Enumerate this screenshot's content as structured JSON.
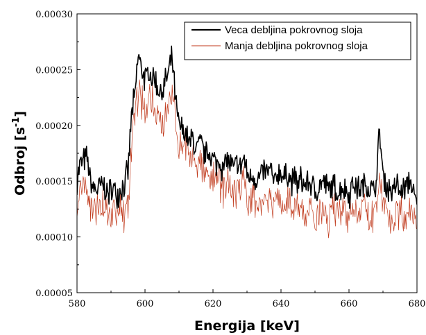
{
  "chart_data": {
    "type": "line",
    "title": "",
    "xlabel": "Energija [keV]",
    "ylabel_main": "Odbroj [s",
    "ylabel_sup": "-1",
    "ylabel_close": "]",
    "xlim": [
      580,
      680
    ],
    "ylim": [
      5e-05,
      0.0003
    ],
    "xticks": [
      580,
      600,
      620,
      640,
      660,
      680
    ],
    "xtick_labels": [
      "580",
      "600",
      "620",
      "640",
      "660",
      "680"
    ],
    "yticks": [
      5e-05,
      0.0001,
      0.00015,
      0.0002,
      0.00025,
      0.0003
    ],
    "ytick_labels": [
      "0.00005",
      "0.00010",
      "0.00015",
      "0.00020",
      "0.00025",
      "0.00030"
    ],
    "grid": false,
    "legend_position": "top-right",
    "series": [
      {
        "name": "Veca debljina pokrovnog sloja",
        "color": "#000000",
        "x": [
          580,
          581,
          582,
          583,
          584,
          585,
          586,
          587,
          588,
          589,
          590,
          591,
          592,
          593,
          594,
          595,
          596,
          597,
          598,
          599,
          600,
          601,
          602,
          603,
          604,
          605,
          606,
          607,
          608,
          609,
          610,
          611,
          612,
          613,
          614,
          615,
          616,
          617,
          618,
          619,
          620,
          621,
          622,
          623,
          624,
          625,
          626,
          627,
          628,
          629,
          630,
          631,
          632,
          633,
          634,
          635,
          636,
          637,
          638,
          639,
          640,
          641,
          642,
          643,
          644,
          645,
          646,
          647,
          648,
          649,
          650,
          651,
          652,
          653,
          654,
          655,
          656,
          657,
          658,
          659,
          660,
          661,
          662,
          663,
          664,
          665,
          666,
          667,
          668,
          669,
          670,
          671,
          672,
          673,
          674,
          675,
          676,
          677,
          678,
          679,
          680
        ],
        "y": [
          0.000152,
          0.000166,
          0.000168,
          0.00017,
          0.000148,
          0.000143,
          0.000142,
          0.000146,
          0.000145,
          0.000139,
          0.000141,
          0.000143,
          0.000139,
          0.000144,
          0.000148,
          0.000158,
          0.000208,
          0.000225,
          0.000262,
          0.000252,
          0.00024,
          0.000247,
          0.000243,
          0.000241,
          0.000232,
          0.000229,
          0.000239,
          0.000248,
          0.00026,
          0.00022,
          0.000199,
          0.000196,
          0.000192,
          0.000183,
          0.000189,
          0.000178,
          0.000184,
          0.000179,
          0.000173,
          0.000176,
          0.000169,
          0.000166,
          0.000168,
          0.000161,
          0.00017,
          0.000166,
          0.00016,
          0.000165,
          0.000161,
          0.000171,
          0.000157,
          0.000152,
          0.000156,
          0.000149,
          0.000155,
          0.000159,
          0.000157,
          0.00016,
          0.000146,
          0.000157,
          0.000158,
          0.000152,
          0.000158,
          0.000149,
          0.000153,
          0.000147,
          0.000151,
          0.000146,
          0.000149,
          0.000147,
          0.00014,
          0.000143,
          0.000149,
          0.000148,
          0.000142,
          0.000145,
          0.000144,
          0.000138,
          0.000145,
          0.000143,
          0.000137,
          0.000148,
          0.000146,
          0.000143,
          0.000144,
          0.000149,
          0.000143,
          0.000141,
          0.000148,
          0.000195,
          0.000156,
          0.000145,
          0.000144,
          0.00014,
          0.000149,
          0.000139,
          0.000142,
          0.000147,
          0.000152,
          0.000136,
          0.000129
        ]
      },
      {
        "name": "Manja debljina pokrovnog sloja",
        "color": "#c0391b",
        "x": [
          580,
          581,
          582,
          583,
          584,
          585,
          586,
          587,
          588,
          589,
          590,
          591,
          592,
          593,
          594,
          595,
          596,
          597,
          598,
          599,
          600,
          601,
          602,
          603,
          604,
          605,
          606,
          607,
          608,
          609,
          610,
          611,
          612,
          613,
          614,
          615,
          616,
          617,
          618,
          619,
          620,
          621,
          622,
          623,
          624,
          625,
          626,
          627,
          628,
          629,
          630,
          631,
          632,
          633,
          634,
          635,
          636,
          637,
          638,
          639,
          640,
          641,
          642,
          643,
          644,
          645,
          646,
          647,
          648,
          649,
          650,
          651,
          652,
          653,
          654,
          655,
          656,
          657,
          658,
          659,
          660,
          661,
          662,
          663,
          664,
          665,
          666,
          667,
          668,
          669,
          670,
          671,
          672,
          673,
          674,
          675,
          676,
          677,
          678,
          679,
          680
        ],
        "y": [
          0.000128,
          0.000136,
          0.000147,
          0.00014,
          0.000127,
          0.00012,
          0.000128,
          0.000126,
          0.000129,
          0.000118,
          0.00012,
          0.000125,
          0.00012,
          0.000123,
          0.000119,
          0.000132,
          0.000178,
          0.000209,
          0.000228,
          0.000223,
          0.000219,
          0.000222,
          0.000218,
          0.000214,
          0.000208,
          0.000201,
          0.000212,
          0.000223,
          0.000228,
          0.000202,
          0.000187,
          0.000183,
          0.000179,
          0.000172,
          0.000171,
          0.000166,
          0.000167,
          0.000161,
          0.000157,
          0.000155,
          0.000149,
          0.000152,
          0.000146,
          0.000143,
          0.000148,
          0.000146,
          0.000139,
          0.000143,
          0.000144,
          0.00015,
          0.000136,
          0.000132,
          0.000135,
          0.000129,
          0.000133,
          0.000135,
          0.000134,
          0.000139,
          0.000124,
          0.000131,
          0.000135,
          0.000128,
          0.000134,
          0.000126,
          0.000131,
          0.000124,
          0.000129,
          0.000122,
          0.000125,
          0.000121,
          0.000112,
          0.000119,
          0.000125,
          0.000124,
          0.000118,
          0.000121,
          0.00012,
          0.000113,
          0.000121,
          0.000116,
          0.000108,
          0.000122,
          0.000121,
          0.00012,
          0.000122,
          0.000124,
          0.000117,
          0.000116,
          0.000122,
          0.000158,
          0.000128,
          0.000121,
          0.000119,
          0.000115,
          0.000123,
          0.000116,
          0.000117,
          0.000121,
          0.000125,
          0.000114,
          0.000107
        ]
      }
    ]
  }
}
